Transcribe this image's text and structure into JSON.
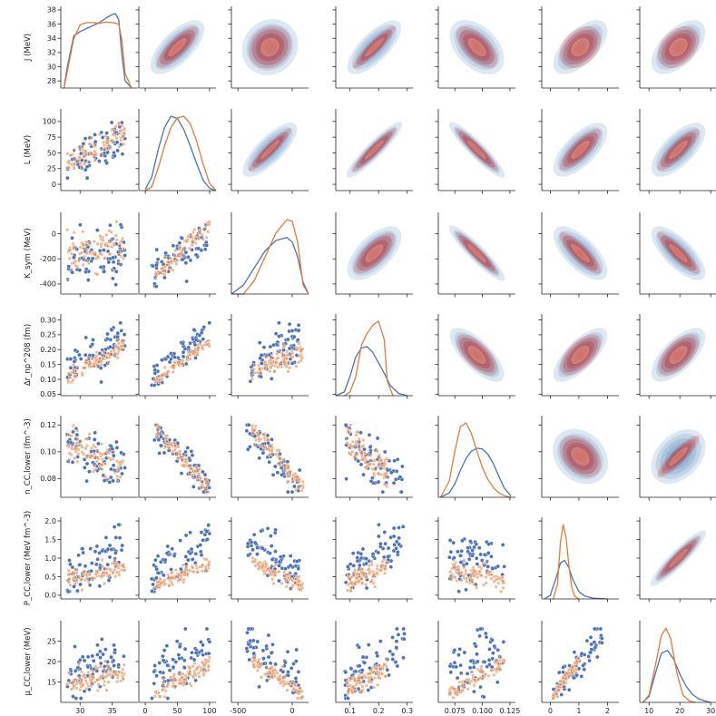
{
  "chart_data": {
    "type": "scatter",
    "kind": "pairplot",
    "diag_kind": "kde",
    "upper_kind": "kde-filled",
    "lower_kind": "scatter",
    "grid": false,
    "colors": {
      "series_a": "#4a72b8",
      "series_b": "#e07b3c",
      "upper_a_cmap_dark": "#1f5fa8",
      "upper_b_cmap_dark": "#b0171d"
    },
    "variables": [
      {
        "id": "J",
        "xlabel": "J (MeV)",
        "ylabel": "J (MeV)",
        "xlim": [
          27,
          39
        ],
        "ylim": [
          27,
          38.5
        ],
        "xticks": [
          30,
          35
        ],
        "yticks": [
          28,
          30,
          32,
          34,
          36,
          38
        ],
        "a_range": [
          28,
          37
        ],
        "b_range": [
          28,
          37
        ]
      },
      {
        "id": "L",
        "xlabel": "L (MeV)",
        "ylabel": "L (MeV)",
        "xlim": [
          -10,
          110
        ],
        "ylim": [
          -10,
          120
        ],
        "xticks": [
          0,
          50,
          100
        ],
        "yticks": [
          0,
          25,
          50,
          75,
          100
        ],
        "a_range": [
          10,
          100
        ],
        "b_range": [
          15,
          100
        ]
      },
      {
        "id": "Ksym",
        "xlabel": "K_sym (MeV)",
        "ylabel": "K_sym (MeV)",
        "xlim": [
          -560,
          150
        ],
        "ylim": [
          -480,
          170
        ],
        "xticks": [
          -500,
          0
        ],
        "yticks": [
          -400,
          -200,
          0
        ],
        "a_range": [
          -420,
          70
        ],
        "b_range": [
          -370,
          100
        ]
      },
      {
        "id": "dR",
        "xlabel": "Δr_np^208 (fm)",
        "ylabel": "Δr_np^208 (fm)",
        "xlim": [
          0.05,
          0.32
        ],
        "ylim": [
          0.045,
          0.32
        ],
        "xticks": [
          0.1,
          0.2,
          0.3
        ],
        "yticks": [
          0.05,
          0.1,
          0.15,
          0.2,
          0.25,
          0.3
        ],
        "a_range": [
          0.08,
          0.29
        ],
        "b_range": [
          0.09,
          0.23
        ]
      },
      {
        "id": "ncc",
        "xlabel": "n_CC,lower (fm^-3)",
        "ylabel": "n_CC,lower (fm^-3)",
        "xlim": [
          0.06,
          0.13
        ],
        "ylim": [
          0.066,
          0.127
        ],
        "xticks": [
          0.075,
          0.1,
          0.125
        ],
        "yticks": [
          0.08,
          0.1,
          0.12
        ],
        "a_range": [
          0.07,
          0.12
        ],
        "b_range": [
          0.07,
          0.12
        ]
      },
      {
        "id": "Pcc",
        "xlabel": "P_CC,lower (MeV fm^-3)",
        "ylabel": "P_CC,lower (MeV fm^-3)",
        "xlim": [
          -0.3,
          2.4
        ],
        "ylim": [
          -0.1,
          2.1
        ],
        "xticks": [
          0,
          1,
          2
        ],
        "yticks": [
          0.0,
          0.5,
          1.0,
          1.5,
          2.0
        ],
        "a_range": [
          0.1,
          1.9
        ],
        "b_range": [
          0.1,
          1.0
        ]
      },
      {
        "id": "mucc",
        "xlabel": "μ_CC,lower (MeV)",
        "ylabel": "μ_CC,lower (MeV)",
        "xlim": [
          7,
          32
        ],
        "ylim": [
          10,
          30
        ],
        "xticks": [
          10,
          20,
          30
        ],
        "yticks": [
          15,
          20,
          25
        ],
        "a_range": [
          11,
          28
        ],
        "b_range": [
          11,
          21
        ]
      }
    ],
    "diagonal": [
      {
        "var": "J",
        "a": {
          "x": [
            27.5,
            28,
            29,
            30,
            31,
            32,
            33,
            34,
            35,
            35.5,
            36,
            36.5,
            37,
            38
          ],
          "density": [
            0,
            0.28,
            0.7,
            0.76,
            0.8,
            0.84,
            0.88,
            0.94,
            0.99,
            1.0,
            0.92,
            0.45,
            0.1,
            0
          ]
        },
        "b": {
          "x": [
            27.5,
            28,
            29,
            30,
            31,
            32,
            33,
            34,
            35,
            36,
            36.5,
            37,
            38
          ],
          "density": [
            0,
            0.22,
            0.66,
            0.85,
            0.88,
            0.88,
            0.87,
            0.89,
            0.88,
            0.86,
            0.65,
            0.2,
            0
          ]
        }
      },
      {
        "var": "L",
        "a": {
          "x": [
            0,
            10,
            20,
            30,
            40,
            50,
            60,
            70,
            80,
            90,
            100,
            110
          ],
          "density": [
            0.02,
            0.18,
            0.55,
            0.85,
            1.0,
            0.97,
            0.82,
            0.6,
            0.36,
            0.14,
            0.03,
            0
          ]
        },
        "b": {
          "x": [
            0,
            10,
            20,
            30,
            40,
            50,
            60,
            70,
            80,
            90,
            100,
            110
          ],
          "density": [
            0,
            0.05,
            0.3,
            0.6,
            0.85,
            0.98,
            1.0,
            0.9,
            0.66,
            0.36,
            0.1,
            0
          ]
        }
      },
      {
        "var": "Ksym",
        "a": {
          "x": [
            -560,
            -450,
            -350,
            -250,
            -150,
            -50,
            0,
            50,
            100,
            150
          ],
          "density": [
            0,
            0.12,
            0.35,
            0.58,
            0.72,
            0.76,
            0.7,
            0.5,
            0.16,
            0
          ]
        },
        "b": {
          "x": [
            -560,
            -450,
            -350,
            -250,
            -150,
            -50,
            0,
            50,
            100,
            150
          ],
          "density": [
            0,
            0,
            0.18,
            0.5,
            0.82,
            1.0,
            0.98,
            0.7,
            0.12,
            0
          ]
        }
      },
      {
        "var": "dR",
        "a": {
          "x": [
            0.05,
            0.08,
            0.1,
            0.12,
            0.14,
            0.16,
            0.18,
            0.2,
            0.22,
            0.24,
            0.27,
            0.3
          ],
          "density": [
            0,
            0.05,
            0.26,
            0.52,
            0.64,
            0.66,
            0.58,
            0.44,
            0.3,
            0.14,
            0.03,
            0
          ]
        },
        "b": {
          "x": [
            0.08,
            0.1,
            0.12,
            0.14,
            0.16,
            0.18,
            0.2,
            0.22,
            0.23,
            0.25
          ],
          "density": [
            0,
            0.05,
            0.25,
            0.68,
            0.84,
            0.95,
            1.0,
            0.75,
            0.2,
            0
          ]
        }
      },
      {
        "var": "ncc",
        "a": {
          "x": [
            0.062,
            0.07,
            0.075,
            0.08,
            0.085,
            0.09,
            0.095,
            0.1,
            0.105,
            0.11,
            0.115,
            0.12,
            0.126
          ],
          "density": [
            0,
            0.06,
            0.18,
            0.36,
            0.52,
            0.62,
            0.66,
            0.65,
            0.58,
            0.45,
            0.28,
            0.12,
            0.02
          ]
        },
        "b": {
          "x": [
            0.062,
            0.07,
            0.075,
            0.08,
            0.085,
            0.09,
            0.095,
            0.1,
            0.105,
            0.11,
            0.115,
            0.12,
            0.126
          ],
          "density": [
            0,
            0.22,
            0.62,
            0.95,
            1.0,
            0.86,
            0.62,
            0.4,
            0.24,
            0.13,
            0.06,
            0.02,
            0
          ]
        }
      },
      {
        "var": "Pcc",
        "a": {
          "x": [
            -0.2,
            0,
            0.2,
            0.35,
            0.5,
            0.65,
            0.8,
            1.0,
            1.2,
            1.5,
            2.0
          ],
          "density": [
            0,
            0.05,
            0.28,
            0.48,
            0.52,
            0.42,
            0.25,
            0.1,
            0.04,
            0.01,
            0
          ]
        },
        "b": {
          "x": [
            0.1,
            0.25,
            0.35,
            0.45,
            0.55,
            0.65,
            0.75,
            0.85,
            1.0
          ],
          "density": [
            0,
            0.2,
            0.75,
            1.0,
            0.82,
            0.45,
            0.15,
            0.04,
            0
          ]
        }
      },
      {
        "var": "mucc",
        "a": {
          "x": [
            8,
            10,
            12,
            14,
            16,
            18,
            20,
            22,
            24,
            26,
            28,
            30
          ],
          "density": [
            0,
            0.08,
            0.38,
            0.66,
            0.7,
            0.58,
            0.38,
            0.22,
            0.11,
            0.05,
            0.02,
            0
          ]
        },
        "b": {
          "x": [
            8,
            10,
            12,
            14,
            15.5,
            17,
            19,
            21,
            23,
            25
          ],
          "density": [
            0,
            0.1,
            0.48,
            0.9,
            1.0,
            0.86,
            0.4,
            0.1,
            0.02,
            0
          ]
        }
      }
    ],
    "correlations": {
      "a": [
        [
          1.0,
          0.55,
          0.1,
          0.6,
          -0.35,
          0.5,
          0.45
        ],
        [
          0.55,
          1.0,
          0.65,
          0.85,
          -0.85,
          0.55,
          0.55
        ],
        [
          0.1,
          0.65,
          1.0,
          0.5,
          -0.85,
          -0.55,
          -0.6
        ],
        [
          0.6,
          0.85,
          0.5,
          1.0,
          -0.6,
          0.6,
          0.55
        ],
        [
          -0.35,
          -0.85,
          -0.85,
          -0.6,
          1.0,
          -0.2,
          0.3
        ],
        [
          0.5,
          0.55,
          -0.55,
          0.6,
          -0.2,
          1.0,
          0.85
        ],
        [
          0.45,
          0.55,
          -0.6,
          0.55,
          0.3,
          0.85,
          1.0
        ]
      ],
      "b": [
        [
          1.0,
          0.7,
          0.15,
          0.85,
          -0.5,
          0.3,
          0.3
        ],
        [
          0.7,
          1.0,
          0.9,
          0.95,
          -0.92,
          0.7,
          0.75
        ],
        [
          0.15,
          0.9,
          1.0,
          0.6,
          -0.9,
          -0.75,
          -0.8
        ],
        [
          0.85,
          0.95,
          0.6,
          1.0,
          -0.55,
          0.5,
          0.5
        ],
        [
          -0.5,
          -0.92,
          -0.9,
          -0.55,
          1.0,
          -0.3,
          0.8
        ],
        [
          0.3,
          0.7,
          -0.75,
          0.5,
          -0.3,
          1.0,
          0.9
        ],
        [
          0.3,
          0.75,
          -0.8,
          0.5,
          0.8,
          0.9,
          1.0
        ]
      ]
    }
  }
}
